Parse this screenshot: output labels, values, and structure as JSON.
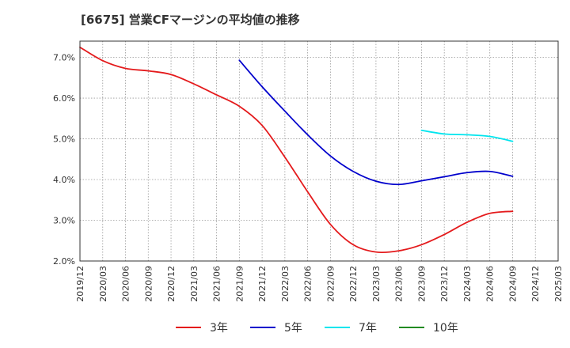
{
  "chart_data": {
    "type": "line",
    "title": "[6675]  営業CFマージンの平均値の推移",
    "xlabel": "",
    "ylabel": "",
    "ylim": [
      2.0,
      7.4
    ],
    "y_ticks": [
      2.0,
      3.0,
      4.0,
      5.0,
      6.0,
      7.0
    ],
    "y_tick_labels": [
      "2.0%",
      "3.0%",
      "4.0%",
      "5.0%",
      "6.0%",
      "7.0%"
    ],
    "x_ticks": [
      "2019/12",
      "2020/03",
      "2020/06",
      "2020/09",
      "2020/12",
      "2021/03",
      "2021/06",
      "2021/09",
      "2021/12",
      "2022/03",
      "2022/06",
      "2022/09",
      "2022/12",
      "2023/03",
      "2023/06",
      "2023/09",
      "2023/12",
      "2024/03",
      "2024/06",
      "2024/09",
      "2024/12",
      "2025/03"
    ],
    "grid": true,
    "legend_position": "bottom",
    "series": [
      {
        "name": "3年",
        "color": "#e41a1c",
        "x": [
          "2019/12",
          "2020/03",
          "2020/06",
          "2020/09",
          "2020/12",
          "2021/03",
          "2021/06",
          "2021/09",
          "2021/12",
          "2022/03",
          "2022/06",
          "2022/09",
          "2022/12",
          "2023/03",
          "2023/06",
          "2023/09",
          "2023/12",
          "2024/03",
          "2024/06",
          "2024/09"
        ],
        "values": [
          7.25,
          6.92,
          6.73,
          6.67,
          6.58,
          6.35,
          6.08,
          5.8,
          5.33,
          4.55,
          3.7,
          2.9,
          2.4,
          2.22,
          2.25,
          2.4,
          2.65,
          2.95,
          3.17,
          3.22
        ]
      },
      {
        "name": "5年",
        "color": "#0000cc",
        "x": [
          "2021/09",
          "2021/12",
          "2022/03",
          "2022/06",
          "2022/09",
          "2022/12",
          "2023/03",
          "2023/06",
          "2023/09",
          "2023/12",
          "2024/03",
          "2024/06",
          "2024/09"
        ],
        "values": [
          6.93,
          6.28,
          5.68,
          5.1,
          4.58,
          4.2,
          3.96,
          3.88,
          3.97,
          4.07,
          4.17,
          4.2,
          4.08
        ]
      },
      {
        "name": "7年",
        "color": "#00e5ee",
        "x": [
          "2023/09",
          "2023/12",
          "2024/03",
          "2024/06",
          "2024/09"
        ],
        "values": [
          5.21,
          5.12,
          5.1,
          5.06,
          4.94
        ]
      },
      {
        "name": "10年",
        "color": "#228b22",
        "x": [],
        "values": []
      }
    ]
  }
}
